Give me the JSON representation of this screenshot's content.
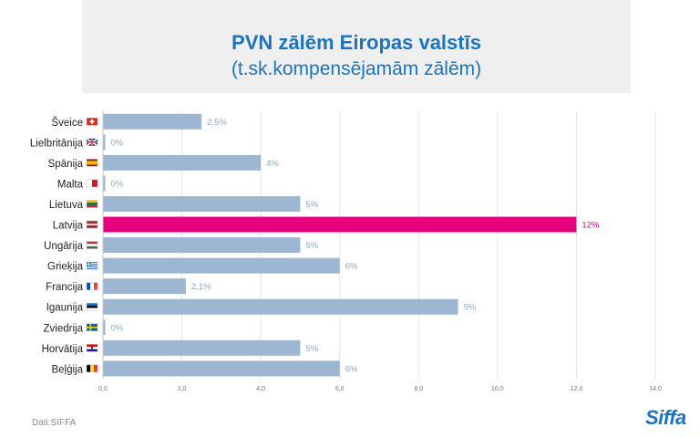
{
  "title_line1": "PVN zālēm Eiropas valstīs",
  "title_line2": "(t.sk.kompensējamām zālēm)",
  "source": "Dati:SIFFA",
  "logo": "Siffa",
  "colors": {
    "bar": "#9db7d3",
    "highlight": "#e6007e",
    "label": "#8fa9c6",
    "grid": "#e4e4e4",
    "title": "#1b74bf"
  },
  "chart_data": {
    "type": "bar",
    "orientation": "horizontal",
    "title": "PVN zālēm Eiropas valstīs (t.sk.kompensējamām zālēm)",
    "categories": [
      "Šveice",
      "Lielbritānija",
      "Spānija",
      "Malta",
      "Lietuva",
      "Latvija",
      "Ungārija",
      "Grieķija",
      "Francija",
      "Igaunija",
      "Zviedrija",
      "Horvātija",
      "Beļģija"
    ],
    "flags": [
      "ch",
      "gb",
      "es",
      "mt",
      "lt",
      "lv",
      "hu",
      "gr",
      "fr",
      "ee",
      "se",
      "hr",
      "be"
    ],
    "values": [
      2.5,
      0,
      4,
      0,
      5,
      12,
      5,
      6,
      2.1,
      9,
      0,
      5,
      6
    ],
    "value_labels": [
      "2,5%",
      "0%",
      "4%",
      "0%",
      "5%",
      "12%",
      "5%",
      "6%",
      "2,1%",
      "9%",
      "0%",
      "5%",
      "6%"
    ],
    "highlight": "Latvija",
    "xlim": [
      0,
      14
    ],
    "xticks": [
      "0,0",
      "2,0",
      "4,0",
      "6,0",
      "8,0",
      "10,0",
      "12,0",
      "14,0"
    ],
    "xlabel": "",
    "ylabel": ""
  }
}
